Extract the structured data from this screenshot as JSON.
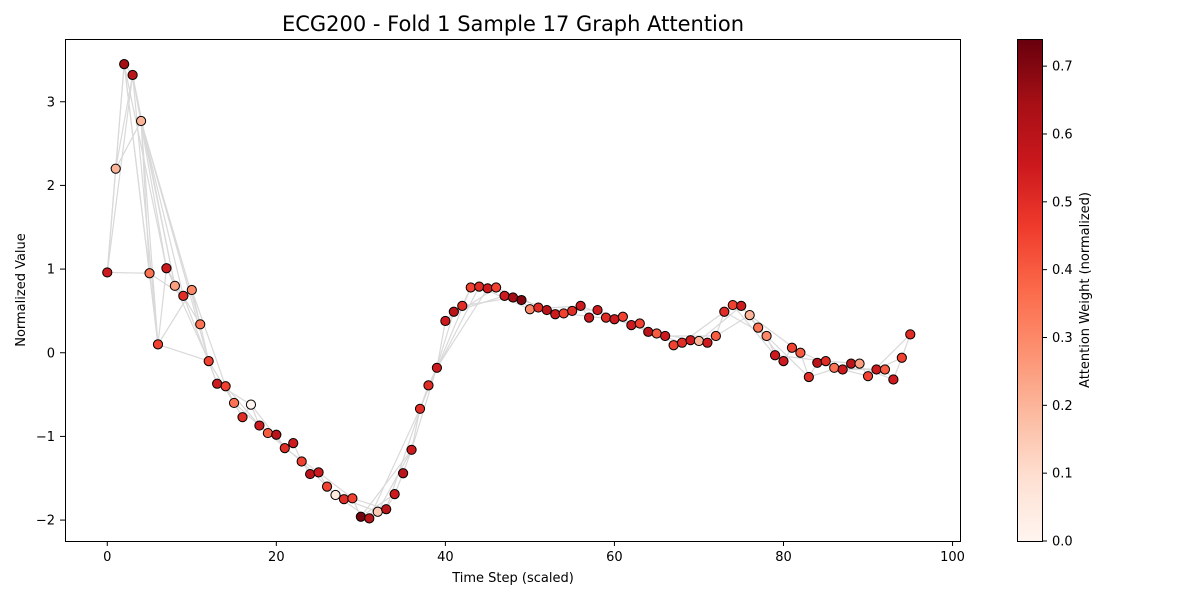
{
  "chart_data": {
    "type": "scatter",
    "title": "ECG200 - Fold 1 Sample 17 Graph Attention",
    "xlabel": "Time Step (scaled)",
    "ylabel": "Normalized Value",
    "xlim": [
      -5,
      101
    ],
    "ylim": [
      -2.25,
      3.75
    ],
    "xticks": [
      0,
      20,
      40,
      60,
      80,
      100
    ],
    "yticks": [
      -2,
      -1,
      0,
      1,
      2,
      3
    ],
    "colorbar": {
      "label": "Attention Weight (normalized)",
      "range": [
        0.0,
        0.74
      ],
      "ticks": [
        0.0,
        0.1,
        0.2,
        0.3,
        0.4,
        0.5,
        0.6,
        0.7
      ],
      "colormap": [
        "#fff5f0",
        "#fee0d2",
        "#fcbba1",
        "#fc9272",
        "#fb6a4a",
        "#ef3b2c",
        "#cb181d",
        "#a50f15",
        "#67000d"
      ]
    },
    "edge_color": "#d9d9d9",
    "grid": false,
    "points": [
      {
        "x": 0,
        "y": 0.96,
        "w": 0.55
      },
      {
        "x": 1,
        "y": 2.2,
        "w": 0.2
      },
      {
        "x": 2,
        "y": 3.45,
        "w": 0.65
      },
      {
        "x": 3,
        "y": 3.32,
        "w": 0.6
      },
      {
        "x": 4,
        "y": 2.77,
        "w": 0.2
      },
      {
        "x": 5,
        "y": 0.95,
        "w": 0.35
      },
      {
        "x": 6,
        "y": 0.1,
        "w": 0.45
      },
      {
        "x": 7,
        "y": 1.01,
        "w": 0.55
      },
      {
        "x": 8,
        "y": 0.8,
        "w": 0.25
      },
      {
        "x": 9,
        "y": 0.68,
        "w": 0.5
      },
      {
        "x": 10,
        "y": 0.75,
        "w": 0.3
      },
      {
        "x": 11,
        "y": 0.34,
        "w": 0.35
      },
      {
        "x": 12,
        "y": -0.1,
        "w": 0.45
      },
      {
        "x": 13,
        "y": -0.37,
        "w": 0.55
      },
      {
        "x": 14,
        "y": -0.4,
        "w": 0.45
      },
      {
        "x": 15,
        "y": -0.6,
        "w": 0.35
      },
      {
        "x": 16,
        "y": -0.77,
        "w": 0.5
      },
      {
        "x": 17,
        "y": -0.62,
        "w": 0.0
      },
      {
        "x": 18,
        "y": -0.87,
        "w": 0.55
      },
      {
        "x": 19,
        "y": -0.96,
        "w": 0.4
      },
      {
        "x": 20,
        "y": -0.98,
        "w": 0.6
      },
      {
        "x": 21,
        "y": -1.14,
        "w": 0.5
      },
      {
        "x": 22,
        "y": -1.08,
        "w": 0.55
      },
      {
        "x": 23,
        "y": -1.3,
        "w": 0.45
      },
      {
        "x": 24,
        "y": -1.45,
        "w": 0.6
      },
      {
        "x": 25,
        "y": -1.43,
        "w": 0.55
      },
      {
        "x": 26,
        "y": -1.6,
        "w": 0.45
      },
      {
        "x": 27,
        "y": -1.7,
        "w": 0.05
      },
      {
        "x": 28,
        "y": -1.75,
        "w": 0.5
      },
      {
        "x": 29,
        "y": -1.74,
        "w": 0.45
      },
      {
        "x": 30,
        "y": -1.96,
        "w": 0.72
      },
      {
        "x": 31,
        "y": -1.98,
        "w": 0.6
      },
      {
        "x": 32,
        "y": -1.9,
        "w": 0.15
      },
      {
        "x": 33,
        "y": -1.87,
        "w": 0.6
      },
      {
        "x": 34,
        "y": -1.69,
        "w": 0.55
      },
      {
        "x": 35,
        "y": -1.44,
        "w": 0.6
      },
      {
        "x": 36,
        "y": -1.16,
        "w": 0.55
      },
      {
        "x": 37,
        "y": -0.67,
        "w": 0.5
      },
      {
        "x": 38,
        "y": -0.39,
        "w": 0.5
      },
      {
        "x": 39,
        "y": -0.18,
        "w": 0.55
      },
      {
        "x": 40,
        "y": 0.38,
        "w": 0.55
      },
      {
        "x": 41,
        "y": 0.49,
        "w": 0.6
      },
      {
        "x": 42,
        "y": 0.56,
        "w": 0.5
      },
      {
        "x": 43,
        "y": 0.78,
        "w": 0.45
      },
      {
        "x": 44,
        "y": 0.79,
        "w": 0.5
      },
      {
        "x": 45,
        "y": 0.77,
        "w": 0.55
      },
      {
        "x": 46,
        "y": 0.78,
        "w": 0.45
      },
      {
        "x": 47,
        "y": 0.68,
        "w": 0.55
      },
      {
        "x": 48,
        "y": 0.66,
        "w": 0.65
      },
      {
        "x": 49,
        "y": 0.63,
        "w": 0.7
      },
      {
        "x": 50,
        "y": 0.52,
        "w": 0.3
      },
      {
        "x": 51,
        "y": 0.54,
        "w": 0.5
      },
      {
        "x": 52,
        "y": 0.51,
        "w": 0.6
      },
      {
        "x": 53,
        "y": 0.46,
        "w": 0.55
      },
      {
        "x": 54,
        "y": 0.47,
        "w": 0.45
      },
      {
        "x": 55,
        "y": 0.5,
        "w": 0.5
      },
      {
        "x": 56,
        "y": 0.56,
        "w": 0.55
      },
      {
        "x": 57,
        "y": 0.42,
        "w": 0.55
      },
      {
        "x": 58,
        "y": 0.51,
        "w": 0.55
      },
      {
        "x": 59,
        "y": 0.42,
        "w": 0.5
      },
      {
        "x": 60,
        "y": 0.4,
        "w": 0.55
      },
      {
        "x": 61,
        "y": 0.43,
        "w": 0.45
      },
      {
        "x": 62,
        "y": 0.33,
        "w": 0.55
      },
      {
        "x": 63,
        "y": 0.35,
        "w": 0.45
      },
      {
        "x": 64,
        "y": 0.25,
        "w": 0.6
      },
      {
        "x": 65,
        "y": 0.23,
        "w": 0.4
      },
      {
        "x": 66,
        "y": 0.2,
        "w": 0.55
      },
      {
        "x": 67,
        "y": 0.09,
        "w": 0.45
      },
      {
        "x": 68,
        "y": 0.12,
        "w": 0.5
      },
      {
        "x": 69,
        "y": 0.15,
        "w": 0.55
      },
      {
        "x": 70,
        "y": 0.14,
        "w": 0.2
      },
      {
        "x": 71,
        "y": 0.12,
        "w": 0.55
      },
      {
        "x": 72,
        "y": 0.2,
        "w": 0.4
      },
      {
        "x": 73,
        "y": 0.49,
        "w": 0.5
      },
      {
        "x": 74,
        "y": 0.57,
        "w": 0.45
      },
      {
        "x": 75,
        "y": 0.56,
        "w": 0.55
      },
      {
        "x": 76,
        "y": 0.45,
        "w": 0.2
      },
      {
        "x": 77,
        "y": 0.3,
        "w": 0.35
      },
      {
        "x": 78,
        "y": 0.2,
        "w": 0.3
      },
      {
        "x": 79,
        "y": -0.03,
        "w": 0.55
      },
      {
        "x": 80,
        "y": -0.1,
        "w": 0.55
      },
      {
        "x": 81,
        "y": 0.06,
        "w": 0.45
      },
      {
        "x": 82,
        "y": 0.0,
        "w": 0.4
      },
      {
        "x": 83,
        "y": -0.29,
        "w": 0.5
      },
      {
        "x": 84,
        "y": -0.12,
        "w": 0.6
      },
      {
        "x": 85,
        "y": -0.1,
        "w": 0.5
      },
      {
        "x": 86,
        "y": -0.18,
        "w": 0.35
      },
      {
        "x": 87,
        "y": -0.2,
        "w": 0.55
      },
      {
        "x": 88,
        "y": -0.13,
        "w": 0.6
      },
      {
        "x": 89,
        "y": -0.13,
        "w": 0.25
      },
      {
        "x": 90,
        "y": -0.28,
        "w": 0.45
      },
      {
        "x": 91,
        "y": -0.2,
        "w": 0.55
      },
      {
        "x": 92,
        "y": -0.2,
        "w": 0.4
      },
      {
        "x": 93,
        "y": -0.32,
        "w": 0.55
      },
      {
        "x": 94,
        "y": -0.06,
        "w": 0.45
      },
      {
        "x": 95,
        "y": 0.22,
        "w": 0.5
      }
    ],
    "extra_edges": [
      [
        0,
        2
      ],
      [
        0,
        3
      ],
      [
        0,
        5
      ],
      [
        1,
        3
      ],
      [
        1,
        4
      ],
      [
        2,
        5
      ],
      [
        2,
        6
      ],
      [
        3,
        6
      ],
      [
        3,
        7
      ],
      [
        4,
        6
      ],
      [
        4,
        8
      ],
      [
        4,
        9
      ],
      [
        4,
        11
      ],
      [
        4,
        12
      ],
      [
        2,
        7
      ],
      [
        3,
        8
      ],
      [
        5,
        9
      ],
      [
        6,
        10
      ],
      [
        6,
        12
      ],
      [
        7,
        11
      ],
      [
        8,
        12
      ],
      [
        9,
        13
      ],
      [
        10,
        14
      ],
      [
        12,
        16
      ],
      [
        13,
        17
      ],
      [
        14,
        18
      ],
      [
        15,
        19
      ],
      [
        17,
        21
      ],
      [
        19,
        23
      ],
      [
        21,
        25
      ],
      [
        23,
        27
      ],
      [
        25,
        29
      ],
      [
        27,
        31
      ],
      [
        28,
        32
      ],
      [
        29,
        33
      ],
      [
        30,
        34
      ],
      [
        30,
        36
      ],
      [
        31,
        37
      ],
      [
        32,
        36
      ],
      [
        33,
        38
      ],
      [
        36,
        41
      ],
      [
        37,
        43
      ],
      [
        38,
        44
      ],
      [
        39,
        45
      ],
      [
        40,
        46
      ],
      [
        41,
        47
      ],
      [
        42,
        48
      ],
      [
        44,
        50
      ],
      [
        46,
        52
      ],
      [
        48,
        54
      ],
      [
        50,
        56
      ],
      [
        52,
        58
      ],
      [
        54,
        60
      ],
      [
        56,
        62
      ],
      [
        58,
        64
      ],
      [
        60,
        66
      ],
      [
        62,
        68
      ],
      [
        64,
        70
      ],
      [
        66,
        72
      ],
      [
        68,
        73
      ],
      [
        70,
        75
      ],
      [
        72,
        76
      ],
      [
        73,
        78
      ],
      [
        74,
        79
      ],
      [
        75,
        80
      ],
      [
        76,
        82
      ],
      [
        78,
        83
      ],
      [
        79,
        85
      ],
      [
        81,
        86
      ],
      [
        83,
        88
      ],
      [
        84,
        90
      ],
      [
        86,
        92
      ],
      [
        88,
        93
      ],
      [
        90,
        95
      ],
      [
        91,
        94
      ],
      [
        85,
        89
      ],
      [
        87,
        91
      ]
    ]
  }
}
